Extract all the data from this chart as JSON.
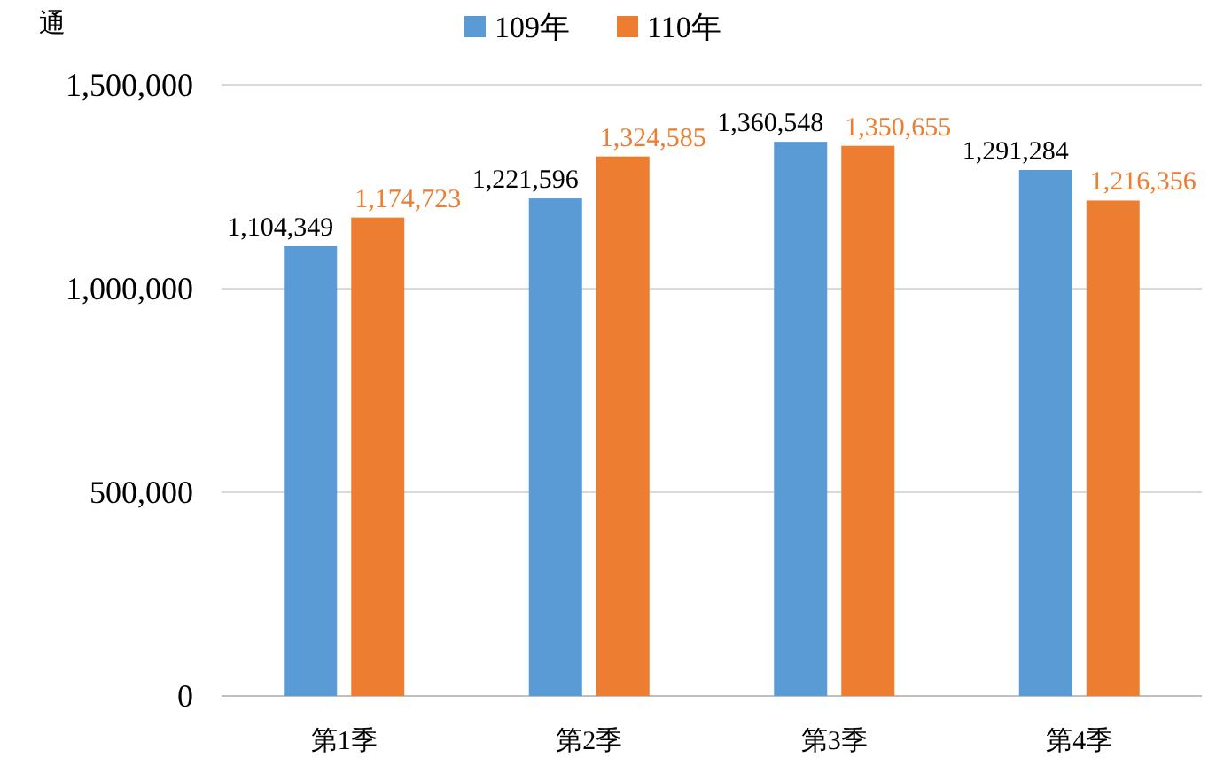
{
  "chart_data": {
    "type": "bar",
    "ylabel": "通",
    "categories": [
      "第1季",
      "第2季",
      "第3季",
      "第4季"
    ],
    "series": [
      {
        "name": "109年",
        "color": "#5b9bd5",
        "values": [
          1104349,
          1221596,
          1360548,
          1291284
        ],
        "value_labels": [
          "1,104,349",
          "1,221,596",
          "1,360,548",
          "1,291,284"
        ]
      },
      {
        "name": "110年",
        "color": "#ed7d31",
        "values": [
          1174723,
          1324585,
          1350655,
          1216356
        ],
        "value_labels": [
          "1,174,723",
          "1,324,585",
          "1,350,655",
          "1,216,356"
        ]
      }
    ],
    "ylim": [
      0,
      1500000
    ],
    "yticks": [
      {
        "value": 0,
        "label": "0"
      },
      {
        "value": 500000,
        "label": "500,000"
      },
      {
        "value": 1000000,
        "label": "1,000,000"
      },
      {
        "value": 1500000,
        "label": "1,500,000"
      }
    ],
    "grid": "y",
    "legend": "top"
  }
}
